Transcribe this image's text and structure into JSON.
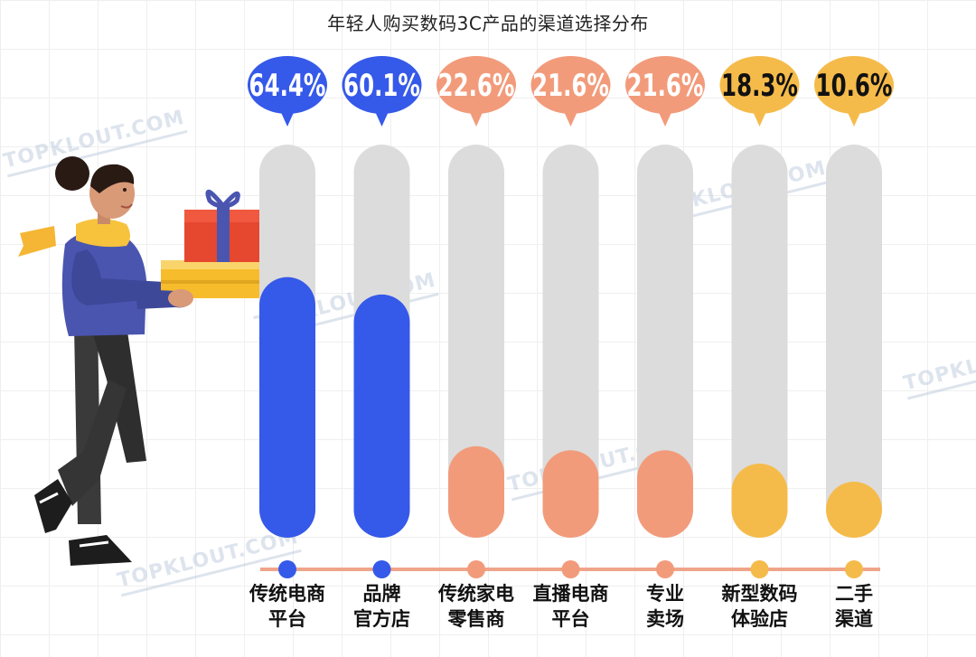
{
  "chart_data": {
    "type": "bar",
    "title": "年轻人购买数码3C产品的渠道选择分布",
    "categories": [
      "传统电商\n平台",
      "品牌\n官方店",
      "传统家电\n零售商",
      "直播电商\n平台",
      "专业\n卖场",
      "新型数码\n体验店",
      "二手\n渠道"
    ],
    "values": [
      64.4,
      60.1,
      22.6,
      21.6,
      21.6,
      18.3,
      10.6
    ],
    "value_labels": [
      "64.4%",
      "60.1%",
      "22.6%",
      "21.6%",
      "21.6%",
      "18.3%",
      "10.6%"
    ],
    "ylim": [
      0,
      100
    ],
    "grid": false
  },
  "colors": {
    "track": "#dcdcdc",
    "axis_line": "#f0a48a",
    "groups": [
      "#3559e9",
      "#3559e9",
      "#f29b7b",
      "#f29b7b",
      "#f29b7b",
      "#f5bb4a",
      "#f5bb4a"
    ],
    "label_text": [
      "#ffffff",
      "#ffffff",
      "#ffffff",
      "#ffffff",
      "#ffffff",
      "#111111",
      "#111111"
    ]
  },
  "watermark": "TOPKLOUT.COM",
  "illustration": "person-carrying-gift-boxes"
}
